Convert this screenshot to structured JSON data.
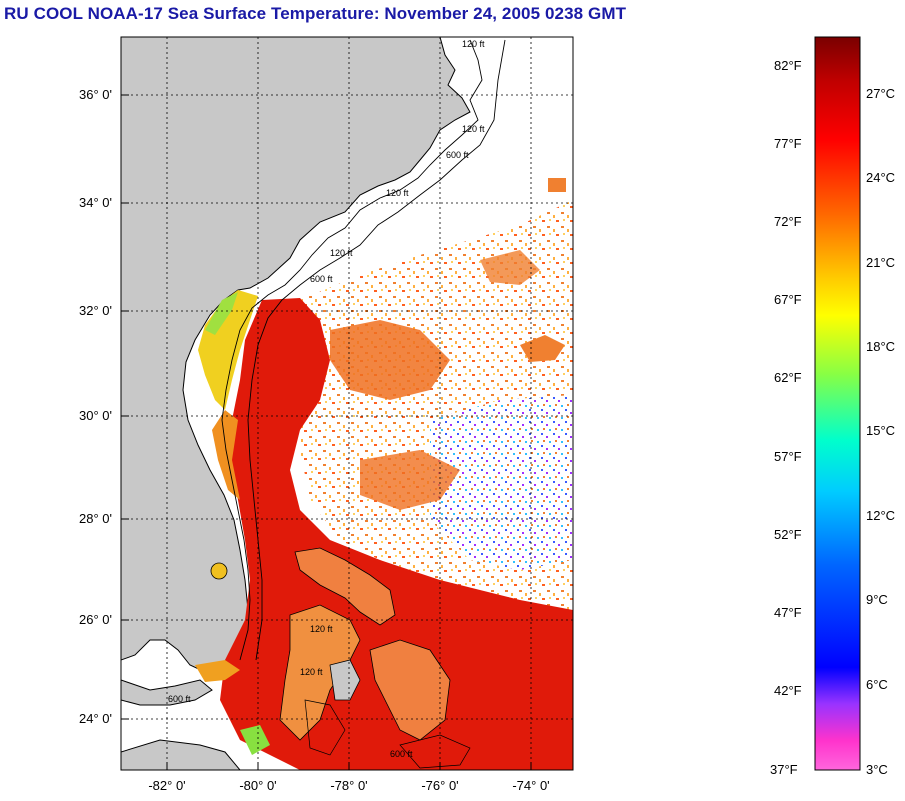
{
  "title": "RU COOL  NOAA-17  Sea Surface Temperature:  November 24, 2005 0238 GMT",
  "lat_labels": [
    "36° 0'",
    "34° 0'",
    "32° 0'",
    "30° 0'",
    "28° 0'",
    "26° 0'",
    "24° 0'"
  ],
  "lon_labels": [
    "-82° 0'",
    "-80° 0'",
    "-78° 0'",
    "-76° 0'",
    "-74° 0'"
  ],
  "contour_labels": [
    "120 ft",
    "120 ft",
    "600 ft",
    "120 ft",
    "120 ft",
    "600 ft",
    "120 ft",
    "600 ft",
    "120 ft",
    "600 ft"
  ],
  "colorbar": {
    "fahrenheit_labels": [
      "82°F",
      "77°F",
      "72°F",
      "67°F",
      "62°F",
      "57°F",
      "52°F",
      "47°F",
      "42°F",
      "37°F"
    ],
    "celsius_labels": [
      "27°C",
      "24°C",
      "21°C",
      "18°C",
      "15°C",
      "12°C",
      "9°C",
      "6°C",
      "3°C"
    ],
    "gradient_colors": [
      "#7a0000",
      "#ff0000",
      "#ff6600",
      "#ffcc00",
      "#ffff00",
      "#88ff44",
      "#00ffcc",
      "#00ccff",
      "#0066ff",
      "#0000ff",
      "#9933ff",
      "#ff33cc",
      "#ff66dd"
    ]
  },
  "colors": {
    "land": "#c8c8c8",
    "ocean_no_data": "#ffffff",
    "title": "#1a1aa6",
    "gulf_stream": "#e01a0a",
    "shelf_warm": "#ff3a10",
    "mid": "#f07020",
    "coastal_yellow": "#f0e020",
    "cool_blue": "#3a5aff",
    "purple": "#a030ff"
  }
}
